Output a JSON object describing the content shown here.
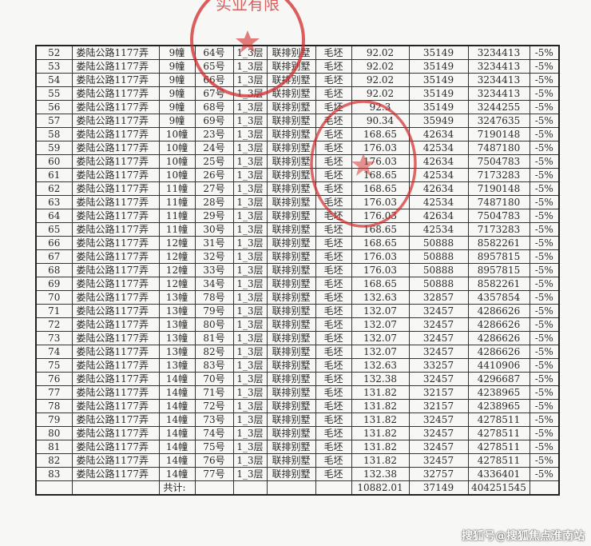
{
  "table": {
    "rows": [
      [
        "52",
        "娄陆公路1177弄",
        "9幢",
        "64号",
        "1_3层",
        "联排别墅",
        "毛坯",
        "92.02",
        "35149",
        "3234413",
        "-5%"
      ],
      [
        "53",
        "娄陆公路1177弄",
        "9幢",
        "65号",
        "1_3层",
        "联排别墅",
        "毛坯",
        "92.02",
        "35149",
        "3234413",
        "-5%"
      ],
      [
        "54",
        "娄陆公路1177弄",
        "9幢",
        "66号",
        "1_3层",
        "联排别墅",
        "毛坯",
        "92.02",
        "35149",
        "3234413",
        "-5%"
      ],
      [
        "55",
        "娄陆公路1177弄",
        "9幢",
        "67号",
        "1_3层",
        "联排别墅",
        "毛坯",
        "92.02",
        "35149",
        "3234413",
        "-5%"
      ],
      [
        "56",
        "娄陆公路1177弄",
        "9幢",
        "68号",
        "1_3层",
        "联排别墅",
        "毛坯",
        "92.3",
        "35149",
        "3244255",
        "-5%"
      ],
      [
        "57",
        "娄陆公路1177弄",
        "9幢",
        "69号",
        "1_3层",
        "联排别墅",
        "毛坯",
        "90.34",
        "35949",
        "3247635",
        "-5%"
      ],
      [
        "58",
        "娄陆公路1177弄",
        "10幢",
        "23号",
        "1_3层",
        "联排别墅",
        "毛坯",
        "168.65",
        "42634",
        "7190148",
        "-5%"
      ],
      [
        "59",
        "娄陆公路1177弄",
        "10幢",
        "24号",
        "1_3层",
        "联排别墅",
        "毛坯",
        "176.03",
        "42534",
        "7487180",
        "-5%"
      ],
      [
        "60",
        "娄陆公路1177弄",
        "10幢",
        "25号",
        "1_3层",
        "联排别墅",
        "毛坯",
        "176.03",
        "42634",
        "7504783",
        "-5%"
      ],
      [
        "61",
        "娄陆公路1177弄",
        "10幢",
        "26号",
        "1_3层",
        "联排别墅",
        "毛坯",
        "168.65",
        "42534",
        "7173283",
        "-5%"
      ],
      [
        "62",
        "娄陆公路1177弄",
        "11幢",
        "27号",
        "1_3层",
        "联排别墅",
        "毛坯",
        "168.65",
        "42634",
        "7190148",
        "-5%"
      ],
      [
        "63",
        "娄陆公路1177弄",
        "11幢",
        "28号",
        "1_3层",
        "联排别墅",
        "毛坯",
        "176.03",
        "42534",
        "7487180",
        "-5%"
      ],
      [
        "64",
        "娄陆公路1177弄",
        "11幢",
        "29号",
        "1_3层",
        "联排别墅",
        "毛坯",
        "176.03",
        "42634",
        "7504783",
        "-5%"
      ],
      [
        "65",
        "娄陆公路1177弄",
        "11幢",
        "30号",
        "1_3层",
        "联排别墅",
        "毛坯",
        "168.65",
        "42534",
        "7173283",
        "-5%"
      ],
      [
        "66",
        "娄陆公路1177弄",
        "12幢",
        "31号",
        "1_3层",
        "联排别墅",
        "毛坯",
        "168.65",
        "50888",
        "8582261",
        "-5%"
      ],
      [
        "67",
        "娄陆公路1177弄",
        "12幢",
        "32号",
        "1_3层",
        "联排别墅",
        "毛坯",
        "176.03",
        "50888",
        "8957815",
        "-5%"
      ],
      [
        "68",
        "娄陆公路1177弄",
        "12幢",
        "33号",
        "1_3层",
        "联排别墅",
        "毛坯",
        "176.03",
        "50888",
        "8957815",
        "-5%"
      ],
      [
        "69",
        "娄陆公路1177弄",
        "12幢",
        "34号",
        "1_3层",
        "联排别墅",
        "毛坯",
        "168.65",
        "50888",
        "8582261",
        "-5%"
      ],
      [
        "70",
        "娄陆公路1177弄",
        "13幢",
        "78号",
        "1_3层",
        "联排别墅",
        "毛坯",
        "132.63",
        "32857",
        "4357854",
        "-5%"
      ],
      [
        "71",
        "娄陆公路1177弄",
        "13幢",
        "79号",
        "1_3层",
        "联排别墅",
        "毛坯",
        "132.07",
        "32457",
        "4286626",
        "-5%"
      ],
      [
        "72",
        "娄陆公路1177弄",
        "13幢",
        "80号",
        "1_3层",
        "联排别墅",
        "毛坯",
        "132.07",
        "32457",
        "4286626",
        "-5%"
      ],
      [
        "73",
        "娄陆公路1177弄",
        "13幢",
        "81号",
        "1_3层",
        "联排别墅",
        "毛坯",
        "132.07",
        "32457",
        "4286626",
        "-5%"
      ],
      [
        "74",
        "娄陆公路1177弄",
        "13幢",
        "82号",
        "1_3层",
        "联排别墅",
        "毛坯",
        "132.07",
        "32457",
        "4286626",
        "-5%"
      ],
      [
        "75",
        "娄陆公路1177弄",
        "13幢",
        "83号",
        "1_3层",
        "联排别墅",
        "毛坯",
        "132.63",
        "33257",
        "4410906",
        "-5%"
      ],
      [
        "76",
        "娄陆公路1177弄",
        "14幢",
        "70号",
        "1_3层",
        "联排别墅",
        "毛坯",
        "132.38",
        "32457",
        "4296687",
        "-5%"
      ],
      [
        "77",
        "娄陆公路1177弄",
        "14幢",
        "71号",
        "1_3层",
        "联排别墅",
        "毛坯",
        "131.82",
        "32157",
        "4238965",
        "-5%"
      ],
      [
        "78",
        "娄陆公路1177弄",
        "14幢",
        "72号",
        "1_3层",
        "联排别墅",
        "毛坯",
        "131.82",
        "32157",
        "4238965",
        "-5%"
      ],
      [
        "79",
        "娄陆公路1177弄",
        "14幢",
        "73号",
        "1_3层",
        "联排别墅",
        "毛坯",
        "131.82",
        "32457",
        "4278511",
        "-5%"
      ],
      [
        "80",
        "娄陆公路1177弄",
        "14幢",
        "74号",
        "1_3层",
        "联排别墅",
        "毛坯",
        "131.82",
        "32457",
        "4278511",
        "-5%"
      ],
      [
        "81",
        "娄陆公路1177弄",
        "14幢",
        "75号",
        "1_3层",
        "联排别墅",
        "毛坯",
        "131.82",
        "32457",
        "4278511",
        "-5%"
      ],
      [
        "82",
        "娄陆公路1177弄",
        "14幢",
        "76号",
        "1_3层",
        "联排别墅",
        "毛坯",
        "131.82",
        "32457",
        "4278511",
        "-5%"
      ],
      [
        "83",
        "娄陆公路1177弄",
        "14幢",
        "77号",
        "1_3层",
        "联排别墅",
        "毛坯",
        "132.38",
        "32757",
        "4336401",
        "-5%"
      ]
    ],
    "total": {
      "label": "共计:",
      "area": "10882.01",
      "avg_price": "37149",
      "total_price": "404251545"
    }
  },
  "stamp": {
    "text": "实业有限",
    "color": "#d22a2a"
  },
  "watermark": "搜狐号@搜狐焦点淮南站"
}
